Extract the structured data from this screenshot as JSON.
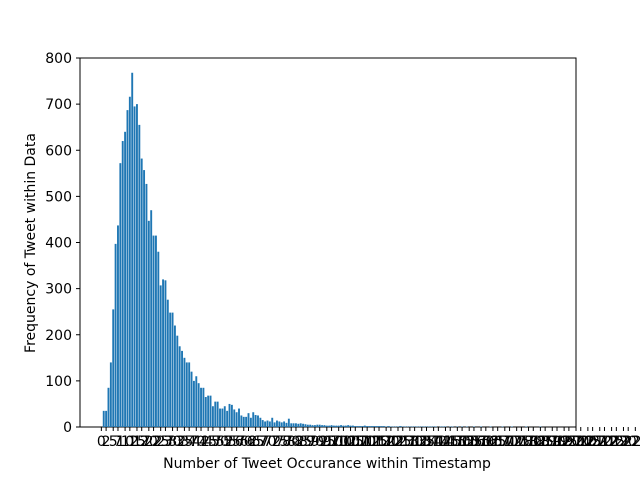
{
  "chart_data": {
    "type": "bar",
    "title": "",
    "xlabel": "Number of Tweet Occurance within Timestamp",
    "ylabel": "Frequency of Tweet within Data",
    "ylim": [
      0,
      800
    ],
    "y_ticks": [
      "0",
      "100",
      "200",
      "300",
      "400",
      "500",
      "600",
      "700",
      "800"
    ],
    "grid": false,
    "legend": "none",
    "bar_color": "#1f77b4",
    "x_values_start": 1,
    "values": [
      35,
      35,
      85,
      140,
      255,
      397,
      437,
      572,
      620,
      640,
      687,
      716,
      768,
      695,
      700,
      655,
      582,
      557,
      527,
      447,
      470,
      415,
      415,
      380,
      307,
      320,
      318,
      276,
      248,
      248,
      220,
      198,
      175,
      165,
      150,
      140,
      140,
      120,
      100,
      110,
      95,
      85,
      85,
      65,
      68,
      68,
      45,
      55,
      55,
      40,
      40,
      45,
      35,
      50,
      48,
      38,
      32,
      40,
      25,
      22,
      22,
      30,
      20,
      32,
      26,
      25,
      20,
      15,
      12,
      14,
      12,
      20,
      10,
      14,
      12,
      10,
      12,
      9,
      18,
      8,
      8,
      8,
      7,
      8,
      7,
      6,
      5,
      5,
      4,
      4,
      5,
      5,
      4,
      4,
      3,
      3,
      4,
      3,
      3,
      3,
      4,
      3,
      3,
      4,
      3,
      3,
      2,
      2,
      2,
      2,
      3,
      2,
      2,
      2,
      2,
      2,
      2,
      2,
      2,
      1,
      2,
      1,
      1,
      1,
      1,
      2,
      1,
      1,
      1,
      1,
      1,
      1,
      1,
      1,
      1,
      1,
      1,
      1,
      1,
      1,
      1,
      0,
      1,
      1,
      1,
      0,
      1,
      1,
      0,
      1,
      0,
      1,
      0,
      1,
      0,
      0,
      1,
      0,
      0,
      1,
      0,
      0,
      0,
      1,
      0,
      0,
      0,
      0,
      1,
      0,
      0,
      0,
      1,
      0,
      0,
      0,
      0,
      0,
      1,
      0,
      0,
      0,
      0,
      0,
      1,
      0,
      0,
      0,
      0,
      0
    ],
    "x_tick_labels": [
      "0",
      "2",
      "5",
      "7",
      "10",
      "12",
      "15",
      "17",
      "20",
      "22",
      "25",
      "27",
      "30",
      "32",
      "35",
      "37",
      "40",
      "42",
      "45",
      "47",
      "50",
      "52",
      "55",
      "57",
      "60",
      "62",
      "65",
      "67",
      "70",
      "72",
      "75",
      "77",
      "80",
      "82",
      "85",
      "87",
      "90",
      "92",
      "95",
      "97",
      "100",
      "102",
      "105",
      "107",
      "110",
      "112",
      "115",
      "117",
      "120",
      "122",
      "125",
      "127",
      "130",
      "132",
      "135",
      "137",
      "140",
      "142",
      "145",
      "147",
      "150",
      "152",
      "155",
      "157",
      "160",
      "162",
      "165",
      "167",
      "170",
      "172",
      "175",
      "177",
      "180",
      "182",
      "185",
      "187",
      "190",
      "192",
      "195",
      "197",
      "200",
      "202",
      "205",
      "207",
      "210",
      "212",
      "215",
      "217",
      "220",
      "222",
      "225"
    ]
  }
}
